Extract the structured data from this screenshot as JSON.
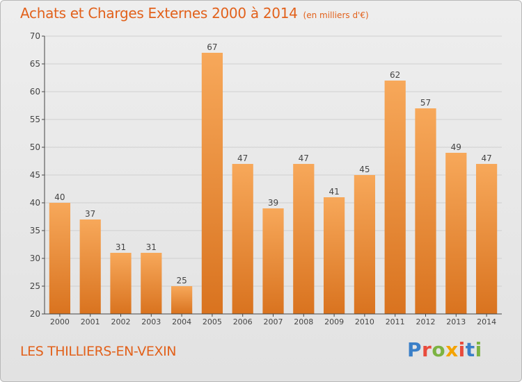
{
  "header": {
    "title": "Achats et Charges Externes 2000 à 2014",
    "unit": "(en milliers d'€)"
  },
  "footer": {
    "commune": "LES THILLIERS-EN-VEXIN",
    "logo_text": "Proxiti",
    "logo_colors": [
      "#3a7fc8",
      "#e94b3c",
      "#7cb342",
      "#f4a300",
      "#e94b3c",
      "#3a7fc8",
      "#7cb342"
    ]
  },
  "colors": {
    "bar_top": "#f7a85a",
    "bar_bottom": "#d9731f",
    "title": "#e2611b",
    "axis": "#444444",
    "grid": "#cfcfcf"
  },
  "chart_data": {
    "type": "bar",
    "title": "Achats et Charges Externes 2000 à 2014",
    "subtitle": "(en milliers d'€)",
    "categories": [
      "2000",
      "2001",
      "2002",
      "2003",
      "2004",
      "2005",
      "2006",
      "2007",
      "2008",
      "2009",
      "2010",
      "2011",
      "2012",
      "2013",
      "2014"
    ],
    "values": [
      40,
      37,
      31,
      31,
      25,
      67,
      47,
      39,
      47,
      41,
      45,
      62,
      57,
      49,
      47
    ],
    "ylim": [
      20,
      70
    ],
    "yticks": [
      20,
      25,
      30,
      35,
      40,
      45,
      50,
      55,
      60,
      65,
      70
    ],
    "grid": true,
    "data_labels": true
  }
}
